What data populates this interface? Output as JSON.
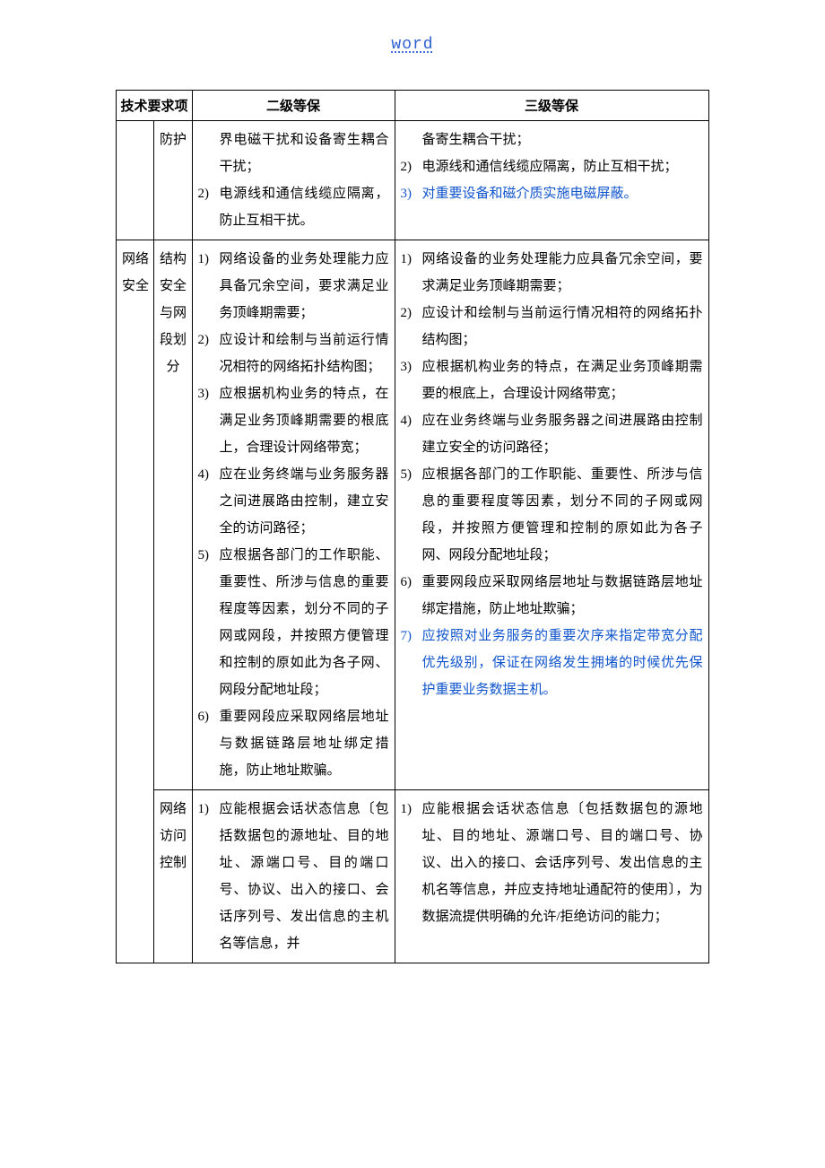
{
  "header": "word",
  "columns": {
    "cat": "技术要求项",
    "l2": "二级等保",
    "l3": "三级等保"
  },
  "rows": [
    {
      "cat1": "",
      "cat2": "防护",
      "l2": [
        {
          "n": "",
          "t": "界电磁干扰和设备寄生耦合干扰；",
          "hl": false
        },
        {
          "n": "2)",
          "t": "电源线和通信线缆应隔离，防止互相干扰。",
          "hl": false
        }
      ],
      "l3": [
        {
          "n": "",
          "t": "备寄生耦合干扰；",
          "hl": false
        },
        {
          "n": "2)",
          "t": "电源线和通信线缆应隔离，防止互相干扰；",
          "hl": false
        },
        {
          "n": "3)",
          "t": "对重要设备和磁介质实施电磁屏蔽。",
          "hl": true
        }
      ]
    },
    {
      "cat1": "网络安全",
      "cat2": "结构安全与网段划分",
      "l2": [
        {
          "n": "1)",
          "t": "网络设备的业务处理能力应具备冗余空间，要求满足业务顶峰期需要；",
          "hl": false
        },
        {
          "n": "2)",
          "t": "应设计和绘制与当前运行情况相符的网络拓扑结构图；",
          "hl": false
        },
        {
          "n": "3)",
          "t": "应根据机构业务的特点，在满足业务顶峰期需要的根底上，合理设计网络带宽；",
          "hl": false
        },
        {
          "n": "4)",
          "t": "应在业务终端与业务服务器之间进展路由控制，建立安全的访问路径；",
          "hl": false
        },
        {
          "n": "5)",
          "t": "应根据各部门的工作职能、重要性、所涉与信息的重要程度等因素，划分不同的子网或网段，并按照方便管理和控制的原如此为各子网、网段分配地址段；",
          "hl": false
        },
        {
          "n": "6)",
          "t": "重要网段应采取网络层地址与数据链路层地址绑定措施，防止地址欺骗。",
          "hl": false
        }
      ],
      "l3": [
        {
          "n": "1)",
          "t": "网络设备的业务处理能力应具备冗余空间，要求满足业务顶峰期需要；",
          "hl": false
        },
        {
          "n": "2)",
          "t": "应设计和绘制与当前运行情况相符的网络拓扑结构图；",
          "hl": false
        },
        {
          "n": "3)",
          "t": "应根据机构业务的特点，在满足业务顶峰期需要的根底上，合理设计网络带宽；",
          "hl": false
        },
        {
          "n": "4)",
          "t": "应在业务终端与业务服务器之间进展路由控制建立安全的访问路径；",
          "hl": false
        },
        {
          "n": "5)",
          "t": "应根据各部门的工作职能、重要性、所涉与信息的重要程度等因素，划分不同的子网或网段，并按照方便管理和控制的原如此为各子网、网段分配地址段；",
          "hl": false
        },
        {
          "n": "6)",
          "t": "重要网段应采取网络层地址与数据链路层地址绑定措施，防止地址欺骗；",
          "hl": false
        },
        {
          "n": "7)",
          "t": "应按照对业务服务的重要次序来指定带宽分配优先级别，保证在网络发生拥堵的时候优先保护重要业务数据主机。",
          "hl": true
        }
      ]
    },
    {
      "cat1": "",
      "cat2": "网络访问控制",
      "l2": [
        {
          "n": "1)",
          "t": "应能根据会话状态信息〔包括数据包的源地址、目的地址、源端口号、目的端口号、协议、出入的接口、会话序列号、发出信息的主机名等信息，并",
          "hl": false
        }
      ],
      "l3": [
        {
          "n": "1)",
          "t": "应能根据会话状态信息〔包括数据包的源地址、目的地址、源端口号、目的端口号、协议、出入的接口、会话序列号、发出信息的主机名等信息，并应支持地址通配符的使用〕，为数据流提供明确的允许/拒绝访问的能力；",
          "hl": false
        }
      ]
    }
  ]
}
